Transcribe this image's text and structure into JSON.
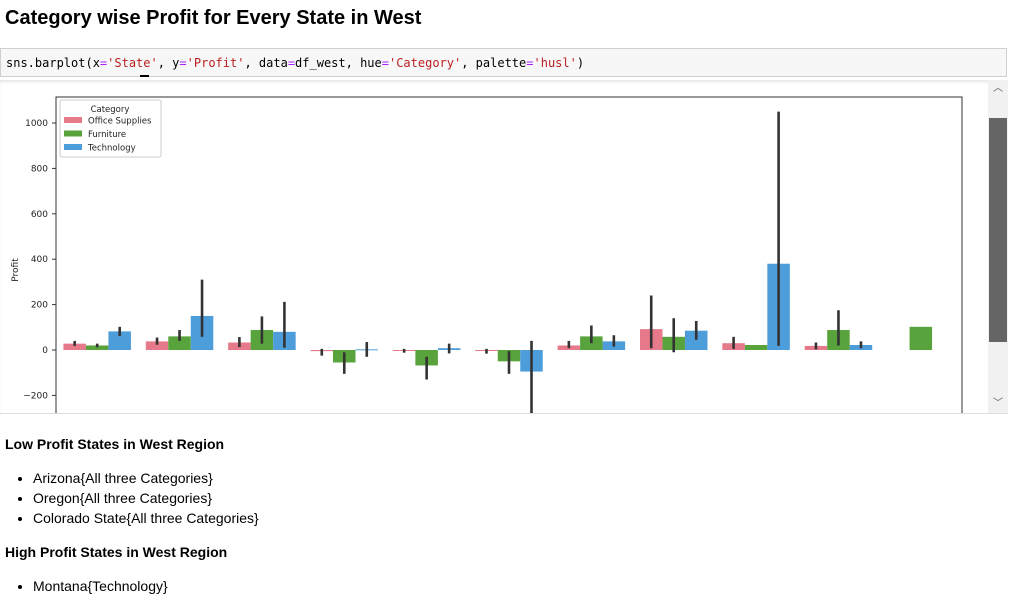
{
  "page_title": "Category wise Profit for Every State in West",
  "code": {
    "prefix": "sns.barplot(x",
    "eq1": "=",
    "x_val": "'State'",
    "sep1": ", y",
    "eq2": "=",
    "y_val": "'Profit'",
    "sep2": ", data",
    "eq3": "=",
    "data_val": "df_west",
    "sep3": ", hue",
    "eq4": "=",
    "hue_val": "'Category'",
    "sep4": ", palette",
    "eq5": "=",
    "palette_val": "'husl'",
    "suffix": ")"
  },
  "chart_data": {
    "type": "bar",
    "xlabel": "",
    "ylabel": "Profit",
    "ylim": [
      -270,
      1110
    ],
    "yticks": [
      -200,
      0,
      200,
      400,
      600,
      800,
      1000
    ],
    "ytick_labels": [
      "−200",
      "0",
      "200",
      "400",
      "600",
      "800",
      "1000"
    ],
    "legend": {
      "title": "Category",
      "placement": "top-left"
    },
    "num_groups": 11,
    "series": [
      {
        "name": "Office Supplies",
        "color": "#e67a8a",
        "values": [
          28,
          38,
          33,
          -5,
          -4,
          -4,
          20,
          92,
          30,
          18,
          null
        ],
        "err_low": [
          18,
          23,
          13,
          -25,
          -12,
          -16,
          8,
          8,
          5,
          3,
          null
        ],
        "err_high": [
          40,
          55,
          57,
          5,
          5,
          5,
          40,
          240,
          58,
          33,
          null
        ]
      },
      {
        "name": "Furniture",
        "color": "#59a33c",
        "values": [
          20,
          60,
          88,
          -55,
          -68,
          -50,
          60,
          58,
          22,
          88,
          102
        ],
        "err_low": [
          12,
          40,
          28,
          -105,
          -130,
          -105,
          30,
          -10,
          22,
          20,
          102
        ],
        "err_high": [
          28,
          88,
          148,
          -10,
          -30,
          -5,
          108,
          140,
          22,
          175,
          102
        ]
      },
      {
        "name": "Technology",
        "color": "#4e9ddb",
        "values": [
          82,
          150,
          80,
          3,
          8,
          -95,
          38,
          85,
          380,
          22,
          null
        ],
        "err_low": [
          62,
          58,
          10,
          -30,
          -15,
          -280,
          15,
          45,
          18,
          8,
          null
        ],
        "err_high": [
          102,
          310,
          212,
          35,
          28,
          40,
          65,
          128,
          1050,
          38,
          null
        ]
      }
    ]
  },
  "scrollbar": {
    "up_glyph": "︿",
    "down_glyph": "﹀"
  },
  "low_profit": {
    "heading": "Low Profit States in West Region",
    "items": [
      "Arizona{All three Categories}",
      "Oregon{All three Categories}",
      "Colorado State{All three Categories}"
    ]
  },
  "high_profit": {
    "heading": "High Profit States in West Region",
    "items": [
      "Montana{Technology}"
    ]
  }
}
